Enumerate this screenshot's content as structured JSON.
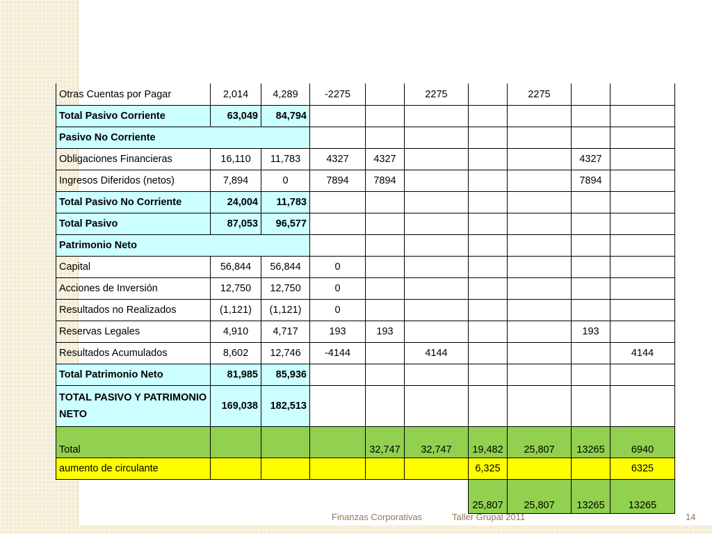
{
  "rows": [
    {
      "label": "Otras Cuentas por Pagar",
      "c1": "2,014",
      "c2": "4,289",
      "c3": "-2275",
      "c4": "",
      "c5": "2275",
      "c6": "",
      "c7": "2275",
      "c8": "",
      "c9": ""
    },
    {
      "label": "Total Pasivo Corriente",
      "c1": "63,049",
      "c2": "84,794"
    },
    {
      "label": "Pasivo No Corriente"
    },
    {
      "label": "Obligaciones Financieras",
      "c1": "16,110",
      "c2": "11,783",
      "c3": "4327",
      "c4": "4327",
      "c8": "4327"
    },
    {
      "label": "Ingresos Diferidos (netos)",
      "c1": "7,894",
      "c2": "0",
      "c3": "7894",
      "c4": "7894",
      "c8": "7894"
    },
    {
      "label": "Total Pasivo No Corriente",
      "c1": "24,004",
      "c2": "11,783"
    },
    {
      "label": "Total Pasivo",
      "c1": "87,053",
      "c2": "96,577"
    },
    {
      "label": "Patrimonio Neto"
    },
    {
      "label": "Capital",
      "c1": "56,844",
      "c2": "56,844",
      "c3": "0"
    },
    {
      "label": "Acciones de Inversión",
      "c1": "12,750",
      "c2": "12,750",
      "c3": "0"
    },
    {
      "label": "Resultados no Realizados",
      "c1": "(1,121)",
      "c2": "(1,121)",
      "c3": "0"
    },
    {
      "label": "Reservas Legales",
      "c1": "4,910",
      "c2": "4,717",
      "c3": "193",
      "c4": "193",
      "c8": "193"
    },
    {
      "label": "Resultados Acumulados",
      "c1": "8,602",
      "c2": "12,746",
      "c3": "-4144",
      "c5": "4144",
      "c9": "4144"
    },
    {
      "label": "Total Patrimonio Neto",
      "c1": "81,985",
      "c2": "85,936"
    },
    {
      "label": "TOTAL PASIVO Y PATRIMONIO NETO",
      "c1": "169,038",
      "c2": "182,513"
    },
    {
      "label": "Total",
      "c4": "32,747",
      "c5": "32,747",
      "c6": "19,482",
      "c7": "25,807",
      "c8": "13265",
      "c9": "6940"
    },
    {
      "label": "aumento de circulante",
      "c6": "6,325",
      "c9": "6325"
    },
    {
      "c6": "25,807",
      "c7": "25,807",
      "c8": "13265",
      "c9": "13265"
    }
  ],
  "footer": {
    "course": "Finanzas Corporativas",
    "taller": "Taller Grupal 2011",
    "page": "14"
  }
}
